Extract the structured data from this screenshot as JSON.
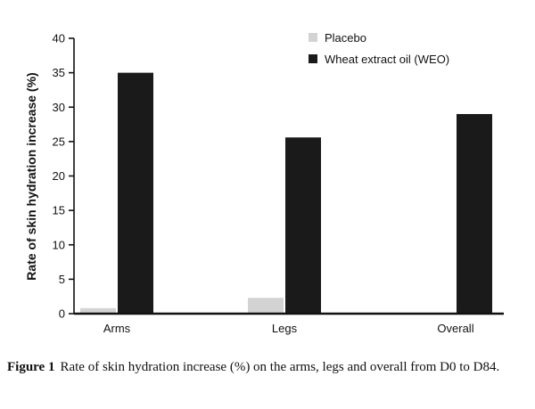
{
  "chart_data": {
    "type": "bar",
    "categories": [
      "Arms",
      "Legs",
      "Overall"
    ],
    "series": [
      {
        "name": "Placebo",
        "color": "#d3d3d3",
        "values": [
          0.8,
          2.3,
          0
        ]
      },
      {
        "name": "Wheat extract oil (WEO)",
        "color": "#1a1a1a",
        "values": [
          35,
          25.6,
          29
        ]
      }
    ],
    "ylabel": "Rate of skin hydration increase (%)",
    "xlabel": "",
    "ylim": [
      0,
      40
    ],
    "yticks": [
      0,
      5,
      10,
      15,
      20,
      25,
      30,
      35,
      40
    ],
    "grid": false,
    "legend_position": "top-right"
  },
  "caption": {
    "label": "Figure 1",
    "text": "Rate of skin hydration increase (%) on the arms, legs and overall from D0 to D84."
  }
}
